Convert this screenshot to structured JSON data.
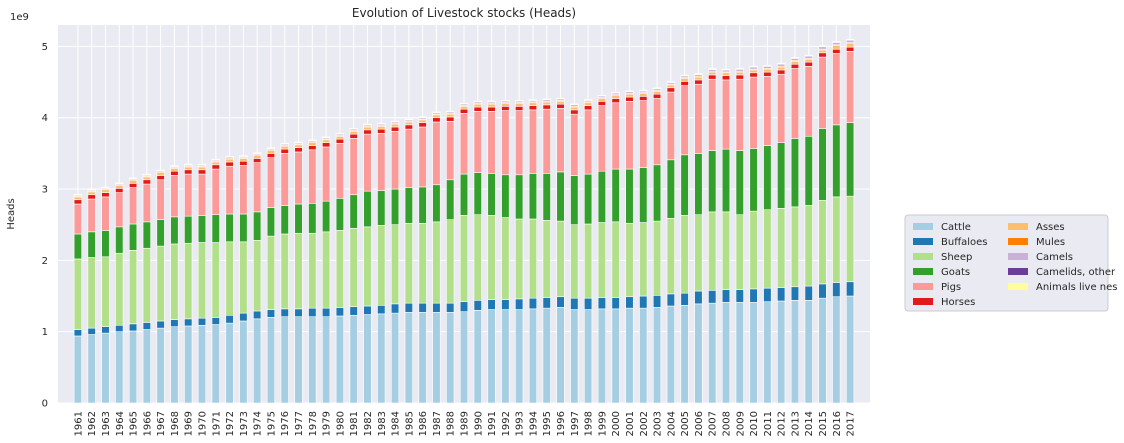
{
  "chart_data": {
    "type": "bar",
    "stacked": true,
    "title": "Evolution of Livestock stocks (Heads)",
    "xlabel": "",
    "ylabel": "Heads",
    "y_scale_label": "1e9",
    "y_tick_values": [
      0,
      1,
      2,
      3,
      4,
      5
    ],
    "y_tick_labels": [
      "0",
      "1",
      "2",
      "3",
      "4",
      "5"
    ],
    "ylim": [
      0,
      5.3
    ],
    "grid": true,
    "legend_position": "right",
    "legend_columns": 2,
    "categories": [
      "1961",
      "1962",
      "1963",
      "1964",
      "1965",
      "1966",
      "1967",
      "1968",
      "1969",
      "1970",
      "1971",
      "1972",
      "1973",
      "1974",
      "1975",
      "1976",
      "1977",
      "1978",
      "1979",
      "1980",
      "1981",
      "1982",
      "1983",
      "1984",
      "1985",
      "1986",
      "1987",
      "1988",
      "1989",
      "1990",
      "1991",
      "1992",
      "1993",
      "1994",
      "1995",
      "1996",
      "1997",
      "1998",
      "1999",
      "2000",
      "2001",
      "2002",
      "2003",
      "2004",
      "2005",
      "2006",
      "2007",
      "2008",
      "2009",
      "2010",
      "2011",
      "2012",
      "2013",
      "2014",
      "2015",
      "2016",
      "2017"
    ],
    "series": [
      {
        "name": "Cattle",
        "color": "#a6cee3",
        "values": [
          0.94,
          0.96,
          0.98,
          1.0,
          1.01,
          1.03,
          1.05,
          1.07,
          1.08,
          1.09,
          1.1,
          1.12,
          1.15,
          1.18,
          1.2,
          1.21,
          1.21,
          1.21,
          1.21,
          1.22,
          1.23,
          1.24,
          1.25,
          1.26,
          1.27,
          1.27,
          1.27,
          1.27,
          1.28,
          1.3,
          1.31,
          1.31,
          1.31,
          1.32,
          1.33,
          1.34,
          1.31,
          1.31,
          1.32,
          1.32,
          1.33,
          1.33,
          1.34,
          1.36,
          1.37,
          1.39,
          1.4,
          1.41,
          1.41,
          1.41,
          1.42,
          1.43,
          1.44,
          1.44,
          1.47,
          1.49,
          1.5
        ]
      },
      {
        "name": "Buffaloes",
        "color": "#1f78b4",
        "values": [
          0.09,
          0.09,
          0.09,
          0.09,
          0.1,
          0.1,
          0.1,
          0.1,
          0.1,
          0.1,
          0.1,
          0.11,
          0.11,
          0.11,
          0.11,
          0.11,
          0.11,
          0.12,
          0.12,
          0.12,
          0.12,
          0.12,
          0.12,
          0.13,
          0.13,
          0.13,
          0.13,
          0.13,
          0.14,
          0.14,
          0.14,
          0.14,
          0.15,
          0.15,
          0.15,
          0.15,
          0.16,
          0.16,
          0.16,
          0.16,
          0.16,
          0.17,
          0.17,
          0.17,
          0.17,
          0.18,
          0.18,
          0.18,
          0.18,
          0.19,
          0.19,
          0.19,
          0.19,
          0.2,
          0.2,
          0.2,
          0.2
        ]
      },
      {
        "name": "Sheep",
        "color": "#b2df8a",
        "values": [
          0.99,
          0.99,
          0.98,
          1.01,
          1.03,
          1.04,
          1.05,
          1.06,
          1.06,
          1.06,
          1.05,
          1.03,
          1.0,
          0.99,
          1.03,
          1.05,
          1.06,
          1.05,
          1.07,
          1.08,
          1.1,
          1.11,
          1.12,
          1.11,
          1.12,
          1.12,
          1.14,
          1.17,
          1.21,
          1.2,
          1.18,
          1.15,
          1.12,
          1.11,
          1.08,
          1.06,
          1.03,
          1.04,
          1.05,
          1.06,
          1.03,
          1.03,
          1.04,
          1.06,
          1.09,
          1.07,
          1.1,
          1.09,
          1.05,
          1.09,
          1.1,
          1.11,
          1.12,
          1.13,
          1.17,
          1.2,
          1.2
        ]
      },
      {
        "name": "Goats",
        "color": "#33a02c",
        "values": [
          0.35,
          0.36,
          0.37,
          0.37,
          0.37,
          0.37,
          0.37,
          0.38,
          0.38,
          0.38,
          0.39,
          0.39,
          0.39,
          0.4,
          0.4,
          0.4,
          0.41,
          0.42,
          0.43,
          0.45,
          0.47,
          0.5,
          0.49,
          0.5,
          0.5,
          0.51,
          0.52,
          0.56,
          0.58,
          0.59,
          0.59,
          0.6,
          0.62,
          0.64,
          0.66,
          0.69,
          0.69,
          0.7,
          0.72,
          0.74,
          0.76,
          0.77,
          0.79,
          0.82,
          0.85,
          0.86,
          0.86,
          0.88,
          0.9,
          0.88,
          0.9,
          0.92,
          0.96,
          0.97,
          1.01,
          1.01,
          1.03
        ]
      },
      {
        "name": "Pigs",
        "color": "#fb9a99",
        "values": [
          0.42,
          0.46,
          0.47,
          0.48,
          0.51,
          0.53,
          0.56,
          0.58,
          0.59,
          0.58,
          0.64,
          0.67,
          0.68,
          0.69,
          0.7,
          0.73,
          0.73,
          0.75,
          0.76,
          0.77,
          0.79,
          0.8,
          0.8,
          0.81,
          0.82,
          0.84,
          0.88,
          0.82,
          0.85,
          0.86,
          0.87,
          0.9,
          0.9,
          0.89,
          0.9,
          0.89,
          0.86,
          0.9,
          0.92,
          0.93,
          0.95,
          0.94,
          0.93,
          0.95,
          0.97,
          0.97,
          1.0,
          0.97,
          1.0,
          1.0,
          0.97,
          0.96,
          0.98,
          0.98,
          1.0,
          1.0,
          1.0
        ]
      },
      {
        "name": "Horses",
        "color": "#e31a1c",
        "values": [
          0.06,
          0.06,
          0.06,
          0.06,
          0.06,
          0.06,
          0.06,
          0.06,
          0.06,
          0.06,
          0.06,
          0.06,
          0.06,
          0.06,
          0.06,
          0.06,
          0.06,
          0.06,
          0.06,
          0.06,
          0.06,
          0.06,
          0.06,
          0.06,
          0.06,
          0.06,
          0.06,
          0.06,
          0.06,
          0.06,
          0.06,
          0.06,
          0.06,
          0.06,
          0.06,
          0.06,
          0.06,
          0.06,
          0.06,
          0.06,
          0.06,
          0.06,
          0.06,
          0.06,
          0.06,
          0.06,
          0.06,
          0.06,
          0.06,
          0.06,
          0.06,
          0.06,
          0.06,
          0.06,
          0.06,
          0.06,
          0.06
        ]
      },
      {
        "name": "Asses",
        "color": "#fdbf6f",
        "values": [
          0.04,
          0.04,
          0.04,
          0.04,
          0.04,
          0.04,
          0.04,
          0.04,
          0.04,
          0.04,
          0.04,
          0.04,
          0.04,
          0.04,
          0.04,
          0.04,
          0.04,
          0.04,
          0.04,
          0.04,
          0.04,
          0.04,
          0.04,
          0.04,
          0.04,
          0.04,
          0.04,
          0.04,
          0.04,
          0.04,
          0.04,
          0.04,
          0.04,
          0.04,
          0.04,
          0.04,
          0.04,
          0.04,
          0.04,
          0.04,
          0.04,
          0.04,
          0.04,
          0.04,
          0.04,
          0.04,
          0.04,
          0.04,
          0.04,
          0.04,
          0.04,
          0.04,
          0.04,
          0.04,
          0.04,
          0.05,
          0.05
        ]
      },
      {
        "name": "Mules",
        "color": "#ff7f00",
        "values": [
          0.012,
          0.012,
          0.012,
          0.012,
          0.012,
          0.012,
          0.012,
          0.012,
          0.012,
          0.012,
          0.012,
          0.012,
          0.012,
          0.012,
          0.012,
          0.012,
          0.012,
          0.012,
          0.012,
          0.012,
          0.012,
          0.012,
          0.012,
          0.012,
          0.012,
          0.012,
          0.012,
          0.012,
          0.012,
          0.012,
          0.012,
          0.012,
          0.012,
          0.012,
          0.012,
          0.012,
          0.012,
          0.012,
          0.012,
          0.012,
          0.012,
          0.012,
          0.012,
          0.012,
          0.012,
          0.012,
          0.012,
          0.012,
          0.012,
          0.012,
          0.012,
          0.012,
          0.012,
          0.012,
          0.012,
          0.012,
          0.012
        ]
      },
      {
        "name": "Camels",
        "color": "#cab2d6",
        "values": [
          0.013,
          0.013,
          0.013,
          0.013,
          0.014,
          0.014,
          0.014,
          0.014,
          0.014,
          0.014,
          0.015,
          0.015,
          0.015,
          0.015,
          0.015,
          0.016,
          0.016,
          0.016,
          0.017,
          0.017,
          0.017,
          0.017,
          0.017,
          0.018,
          0.018,
          0.018,
          0.018,
          0.019,
          0.019,
          0.019,
          0.019,
          0.02,
          0.02,
          0.02,
          0.02,
          0.021,
          0.021,
          0.021,
          0.021,
          0.022,
          0.022,
          0.022,
          0.023,
          0.023,
          0.024,
          0.024,
          0.025,
          0.026,
          0.027,
          0.028,
          0.029,
          0.029,
          0.03,
          0.031,
          0.033,
          0.034,
          0.035
        ]
      },
      {
        "name": "Camelids, other",
        "color": "#6a3d9a",
        "values": [
          0.006,
          0.006,
          0.006,
          0.006,
          0.006,
          0.006,
          0.006,
          0.006,
          0.006,
          0.006,
          0.006,
          0.006,
          0.006,
          0.006,
          0.006,
          0.006,
          0.006,
          0.006,
          0.006,
          0.006,
          0.006,
          0.006,
          0.006,
          0.006,
          0.006,
          0.006,
          0.006,
          0.006,
          0.006,
          0.006,
          0.006,
          0.006,
          0.006,
          0.006,
          0.006,
          0.006,
          0.006,
          0.006,
          0.007,
          0.007,
          0.007,
          0.007,
          0.007,
          0.007,
          0.007,
          0.007,
          0.007,
          0.007,
          0.007,
          0.008,
          0.008,
          0.008,
          0.008,
          0.008,
          0.008,
          0.008,
          0.008
        ]
      },
      {
        "name": "Animals live nes",
        "color": "#ffff99",
        "values": [
          0.006,
          0.006,
          0.006,
          0.006,
          0.006,
          0.006,
          0.006,
          0.006,
          0.006,
          0.006,
          0.006,
          0.006,
          0.006,
          0.006,
          0.006,
          0.006,
          0.006,
          0.006,
          0.006,
          0.006,
          0.006,
          0.006,
          0.006,
          0.006,
          0.006,
          0.006,
          0.006,
          0.006,
          0.006,
          0.006,
          0.006,
          0.006,
          0.006,
          0.006,
          0.006,
          0.006,
          0.006,
          0.006,
          0.006,
          0.006,
          0.006,
          0.006,
          0.006,
          0.006,
          0.006,
          0.006,
          0.006,
          0.006,
          0.006,
          0.006,
          0.006,
          0.006,
          0.006,
          0.006,
          0.006,
          0.006,
          0.006
        ]
      }
    ],
    "colors": {
      "plot_background": "#eaeaf2",
      "grid": "#ffffff",
      "text": "#262626",
      "legend_border": "#cccccc"
    }
  }
}
